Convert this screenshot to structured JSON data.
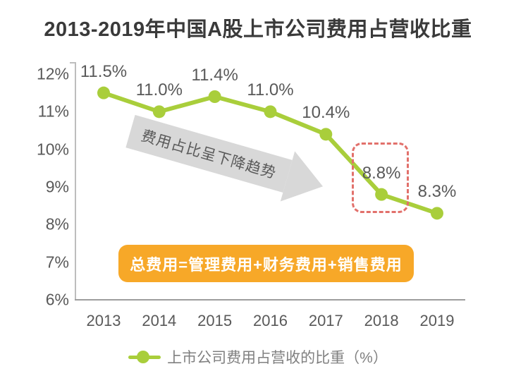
{
  "title": "2013-2019年中国A股上市公司费用占营收比重",
  "chart_data": {
    "type": "line",
    "categories": [
      "2013",
      "2014",
      "2015",
      "2016",
      "2017",
      "2018",
      "2019"
    ],
    "series": [
      {
        "name": "上市公司费用占营收的比重（%）",
        "values": [
          11.5,
          11.0,
          11.4,
          11.0,
          10.4,
          8.8,
          8.3
        ],
        "color": "#a9ce3b"
      }
    ],
    "data_labels": [
      "11.5%",
      "11.0%",
      "11.4%",
      "11.0%",
      "10.4%",
      "8.8%",
      "8.3%"
    ],
    "y_ticks": [
      "12%",
      "11%",
      "10%",
      "9%",
      "8%",
      "7%",
      "6%"
    ],
    "ylim": [
      6,
      12
    ],
    "xlabel": "",
    "ylabel": "",
    "grid": false,
    "legend_position": "bottom",
    "highlighted_category": "2018"
  },
  "annotations": {
    "trend_arrow_text": "费用占比呈下降趋势",
    "formula_badge_text": "总费用=管理费用+财务费用+销售费用"
  },
  "legend": {
    "label": "上市公司费用占营收的比重（%）"
  },
  "colors": {
    "line": "#a9ce3b",
    "badge_orange": "#f7a828",
    "highlight_red": "#e2706b",
    "arrow_gray": "#d8d8d8",
    "text_dark": "#3a3a3a",
    "text_gray": "#595959",
    "legend_text": "#808080"
  }
}
